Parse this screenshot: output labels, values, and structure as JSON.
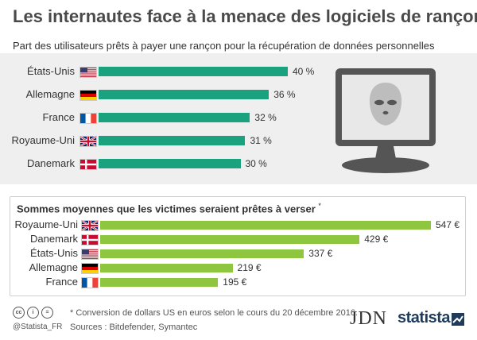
{
  "header": {
    "title": "Les internautes face à la menace des logiciels de rançon"
  },
  "chart_data": [
    {
      "type": "bar",
      "orientation": "horizontal",
      "title": "Part des utilisateurs prêts à payer une rançon pour la récupération de données personnelles",
      "categories": [
        "États-Unis",
        "Allemagne",
        "France",
        "Royaume-Uni",
        "Danemark"
      ],
      "values": [
        40,
        36,
        32,
        31,
        30
      ],
      "value_labels": [
        "40 %",
        "36 %",
        "32 %",
        "31 %",
        "30 %"
      ],
      "flags": [
        "us-flag",
        "germany-flag",
        "france-flag",
        "uk-flag",
        "denmark-flag"
      ],
      "unit": "%",
      "color": "#1aa27f",
      "xlim": [
        0,
        40
      ]
    },
    {
      "type": "bar",
      "orientation": "horizontal",
      "title": "Sommes moyennes que les victimes seraient prêtes à verser",
      "title_mark": "*",
      "categories": [
        "Royaume-Uni",
        "Danemark",
        "États-Unis",
        "Allemagne",
        "France"
      ],
      "values": [
        547,
        429,
        337,
        219,
        195
      ],
      "value_labels": [
        "547 €",
        "429 €",
        "337 €",
        "219 €",
        "195 €"
      ],
      "flags": [
        "uk-flag",
        "denmark-flag",
        "us-flag",
        "germany-flag",
        "france-flag"
      ],
      "unit": "€",
      "color": "#8ec63f",
      "xlim": [
        0,
        547
      ]
    }
  ],
  "footer": {
    "license_badges": [
      "cc",
      "i",
      "="
    ],
    "handle": "@Statista_FR",
    "note": "* Conversion de dollars US en euros selon le cours du 20 décembre 2016.",
    "source": "Sources : Bitdefender, Symantec",
    "logo_jdn": "JDN",
    "logo_statista": "statista"
  },
  "illustration": {
    "icon": "monitor-hacker-balaclava-icon",
    "colors": {
      "frame": "#555555",
      "screen": "#e8e8e8",
      "mask": "#bdbdbd"
    }
  }
}
